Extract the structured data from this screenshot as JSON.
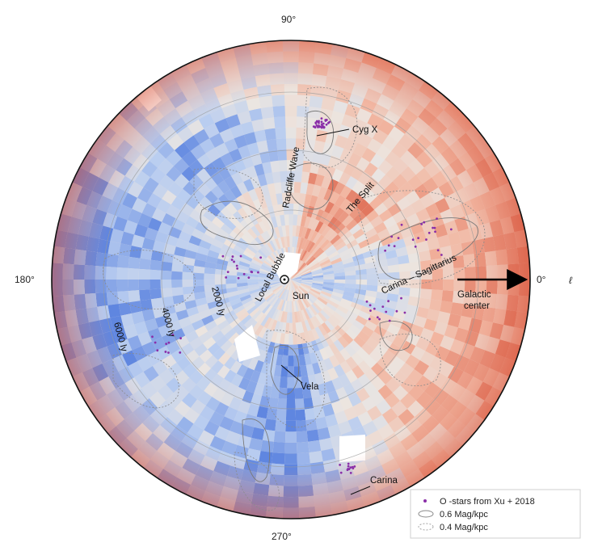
{
  "axes": {
    "top": "90°",
    "left": "180°",
    "right": "0°",
    "bottom": "270°",
    "symbol": "ℓ"
  },
  "distance_rings": [
    "2000 ly",
    "4000 ly",
    "6000 ly"
  ],
  "labels": {
    "sun": "Sun",
    "local_bubble": "Local Bubble",
    "radcliffe": "Radcliffe Wave",
    "split": "The Split",
    "cygx": "Cyg X",
    "carina_sag": "Carina – Sagittarius",
    "vela": "Vela",
    "carina": "Carina",
    "galactic_line1": "Galactic",
    "galactic_line2": "center"
  },
  "legend": {
    "o_stars": "O -stars from Xu + 2018",
    "solid": "0.6 Mag/kpc",
    "dotted": "0.4 Mag/kpc"
  },
  "colors": {
    "red": "#d9553c",
    "light_red": "#f2b7a2",
    "neutral": "#ece6e1",
    "light_blue": "#b9cdf0",
    "blue": "#5f86e0",
    "ostar": "#8a2ea8"
  }
}
